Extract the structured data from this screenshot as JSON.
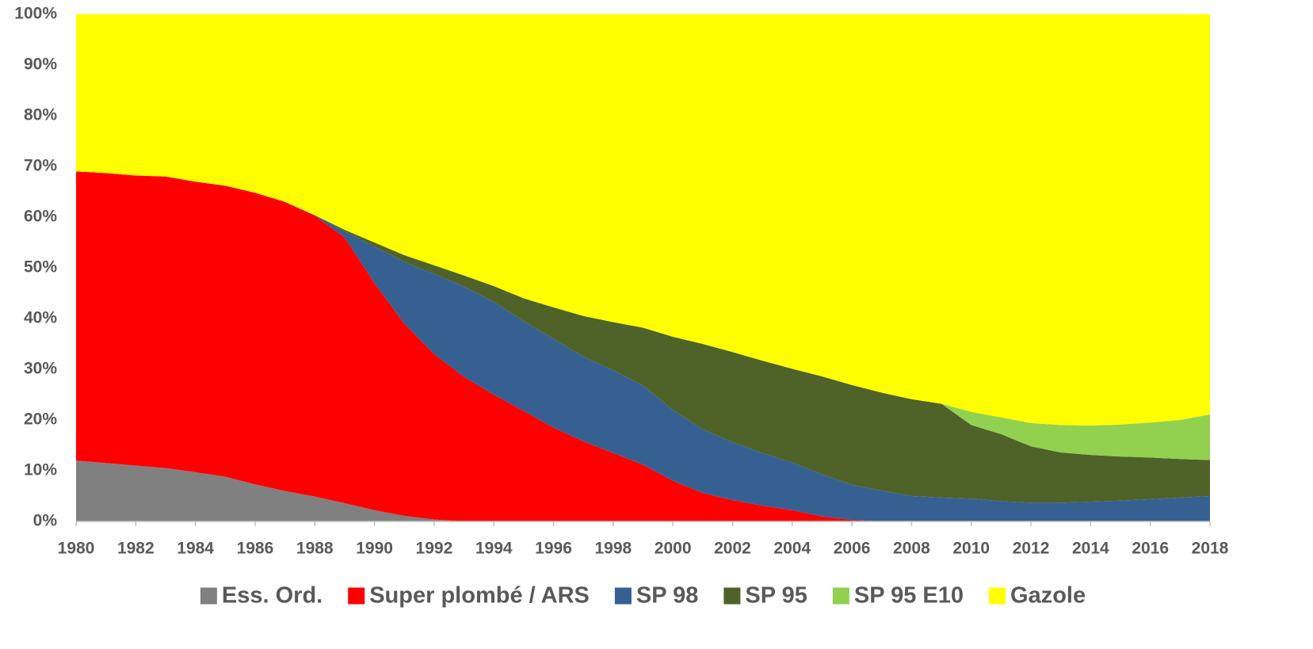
{
  "chart_data": {
    "type": "stacked_area_percent",
    "x": [
      1980,
      1981,
      1982,
      1983,
      1984,
      1985,
      1986,
      1987,
      1988,
      1989,
      1990,
      1991,
      1992,
      1993,
      1994,
      1995,
      1996,
      1997,
      1998,
      1999,
      2000,
      2001,
      2002,
      2003,
      2004,
      2005,
      2006,
      2007,
      2008,
      2009,
      2010,
      2011,
      2012,
      2013,
      2014,
      2015,
      2016,
      2017,
      2018
    ],
    "series": [
      {
        "name": "Ess. Ord.",
        "color": "#808080",
        "values": [
          12,
          11.5,
          11,
          10.5,
          9.7,
          8.8,
          7.3,
          6,
          4.9,
          3.6,
          2.2,
          1.1,
          0.4,
          0,
          0,
          0,
          0,
          0,
          0,
          0,
          0,
          0,
          0,
          0,
          0,
          0,
          0,
          0,
          0,
          0,
          0,
          0,
          0,
          0,
          0,
          0,
          0,
          0,
          0
        ]
      },
      {
        "name": "Super plombé / ARS",
        "color": "#ff0000",
        "values": [
          57,
          57.2,
          57.2,
          57.5,
          57.3,
          57.4,
          57.5,
          57,
          55.4,
          52.4,
          44.8,
          37.9,
          32.6,
          28.5,
          25,
          21.8,
          18.5,
          15.8,
          13.5,
          11.2,
          8,
          5.6,
          4.2,
          3.1,
          2.2,
          1,
          0.3,
          0,
          0,
          0,
          0,
          0,
          0,
          0,
          0,
          0,
          0,
          0,
          0
        ]
      },
      {
        "name": "SP 98",
        "color": "#376092",
        "values": [
          0,
          0,
          0,
          0,
          0,
          0,
          0,
          0,
          0.1,
          1.2,
          7.2,
          12.2,
          15.8,
          17.8,
          18.3,
          17.7,
          17.5,
          16.7,
          16.3,
          15.6,
          14,
          12.6,
          11.4,
          10.4,
          9.4,
          8.3,
          6.9,
          6.1,
          5,
          4.7,
          4.5,
          4,
          3.7,
          3.7,
          3.9,
          4.1,
          4.4,
          4.7,
          5
        ]
      },
      {
        "name": "SP 95",
        "color": "#4f6228",
        "values": [
          0,
          0,
          0,
          0,
          0,
          0,
          0,
          0,
          0,
          0.3,
          0.8,
          1.3,
          1.7,
          2.2,
          3.1,
          4.5,
          6.2,
          8,
          9.5,
          11.4,
          14.4,
          16.8,
          17.8,
          18.2,
          18.5,
          19.3,
          19.7,
          19.3,
          19.1,
          18.5,
          14.5,
          13.2,
          11.1,
          9.9,
          9.2,
          8.7,
          8.2,
          7.6,
          7.1
        ]
      },
      {
        "name": "SP 95 E10",
        "color": "#92d050",
        "values": [
          0,
          0,
          0,
          0,
          0,
          0,
          0,
          0,
          0,
          0,
          0,
          0,
          0,
          0,
          0,
          0,
          0,
          0,
          0,
          0,
          0,
          0,
          0,
          0,
          0,
          0,
          0,
          0,
          0,
          0,
          2.6,
          3.3,
          4.6,
          5.4,
          5.8,
          6.3,
          6.9,
          7.7,
          9
        ]
      },
      {
        "name": "Gazole",
        "color": "#ffff00",
        "values": [
          31,
          31.3,
          31.8,
          32,
          33,
          33.8,
          35.2,
          37,
          39.6,
          42.5,
          45,
          47.5,
          49.5,
          51.5,
          53.6,
          56,
          57.8,
          59.5,
          60.7,
          61.8,
          63.6,
          65,
          66.6,
          68.3,
          69.9,
          71.4,
          73.1,
          74.6,
          75.9,
          76.8,
          78.4,
          79.5,
          80.6,
          81,
          81.1,
          80.9,
          80.5,
          80,
          78.9
        ]
      }
    ],
    "xlim": [
      1980,
      2018
    ],
    "xticks": [
      1980,
      1982,
      1984,
      1986,
      1988,
      1990,
      1992,
      1994,
      1996,
      1998,
      2000,
      2002,
      2004,
      2006,
      2008,
      2010,
      2012,
      2014,
      2016,
      2018
    ],
    "ylim": [
      0,
      100
    ],
    "yticks": [
      {
        "value": 0,
        "label": "0%"
      },
      {
        "value": 10,
        "label": "10%"
      },
      {
        "value": 20,
        "label": "20%"
      },
      {
        "value": 30,
        "label": "30%"
      },
      {
        "value": 40,
        "label": "40%"
      },
      {
        "value": 50,
        "label": "50%"
      },
      {
        "value": 60,
        "label": "60%"
      },
      {
        "value": 70,
        "label": "70%"
      },
      {
        "value": 80,
        "label": "80%"
      },
      {
        "value": 90,
        "label": "90%"
      },
      {
        "value": 100,
        "label": "100%"
      }
    ],
    "grid": false,
    "legend": "bottom"
  }
}
